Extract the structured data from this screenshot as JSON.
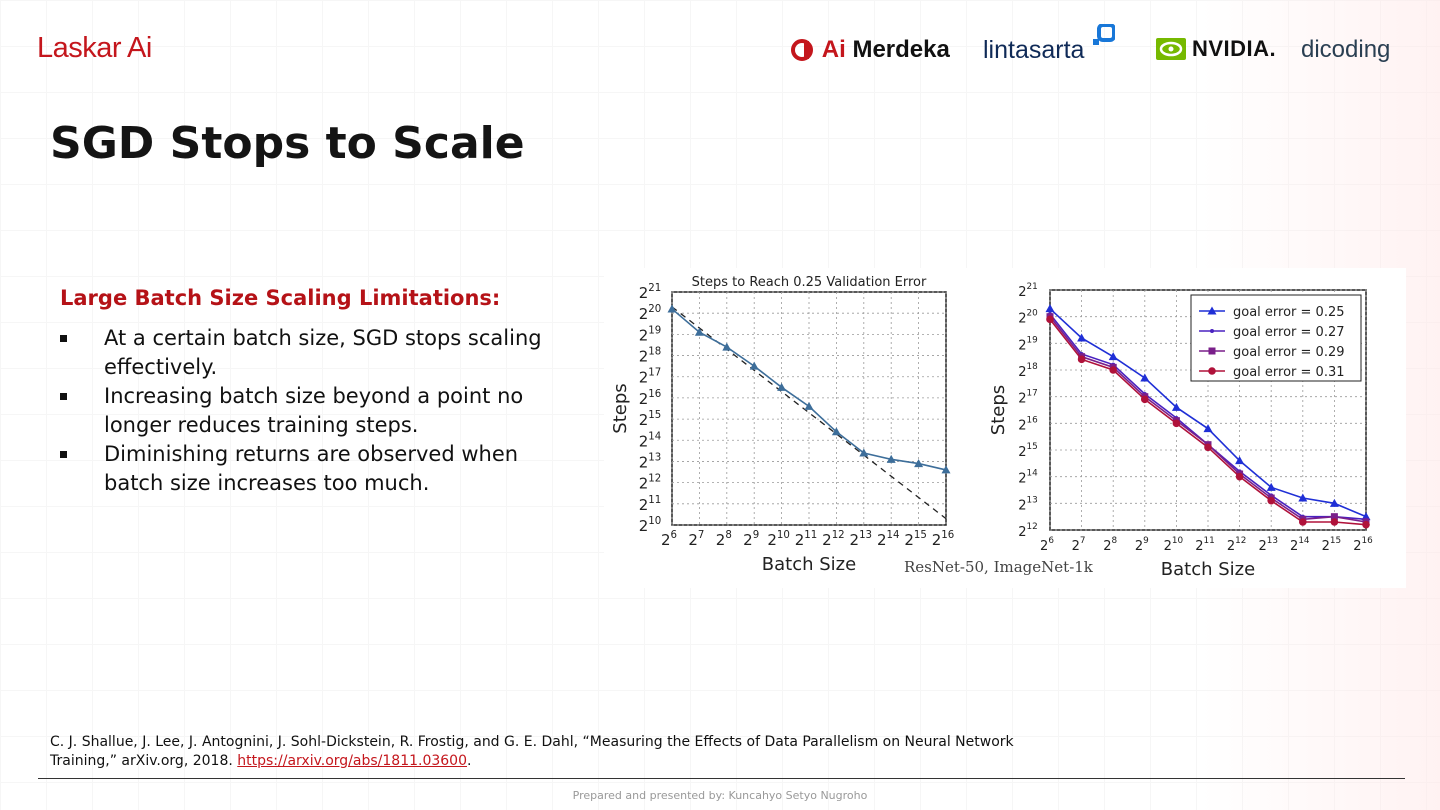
{
  "brand": "Laskar Ai",
  "partner_logos": {
    "merdeka_ai": "Ai",
    "merdeka_word": "Merdeka",
    "lintasarta": "lintasarta",
    "nvidia": "NVIDIA.",
    "dicoding": "dicoding"
  },
  "colors": {
    "accent": "#c4161c",
    "nvidia_green": "#76b900",
    "series_blue": "#1f2fd6",
    "series_purple": "#7a1f8a",
    "series_crimson": "#b0123a"
  },
  "slide": {
    "title": "SGD Stops to Scale",
    "subhead": "Large Batch Size Scaling Limitations:",
    "bullets": [
      "At a certain batch size, SGD stops scaling effectively.",
      "Increasing batch size beyond a point no longer reduces training steps.",
      "Diminishing returns are observed when batch size increases too much."
    ]
  },
  "figure_caption": "ResNet-50, ImageNet-1k",
  "chart_data": [
    {
      "type": "line",
      "title": "Steps to Reach 0.25 Validation Error",
      "xlabel": "Batch Size",
      "ylabel": "Steps",
      "x_scale": "log2",
      "y_scale": "log2",
      "x_ticks": [
        6,
        7,
        8,
        9,
        10,
        11,
        12,
        13,
        14,
        15,
        16
      ],
      "y_ticks": [
        10,
        11,
        12,
        13,
        14,
        15,
        16,
        17,
        18,
        19,
        20,
        21
      ],
      "xlim": [
        6,
        16
      ],
      "ylim": [
        10,
        21
      ],
      "grid": true,
      "x": [
        6,
        7,
        8,
        9,
        10,
        11,
        12,
        13,
        14,
        15,
        16
      ],
      "series": [
        {
          "values": [
            20.2,
            19.1,
            18.4,
            17.5,
            16.5,
            15.6,
            14.4,
            13.4,
            13.1,
            12.9,
            12.6
          ],
          "color": "#3d6e9a"
        }
      ],
      "reference_line": {
        "x": [
          6,
          16
        ],
        "y": [
          20.3,
          10.3
        ],
        "style": "dashed"
      }
    },
    {
      "type": "line",
      "title": "",
      "xlabel": "Batch Size",
      "ylabel": "Steps",
      "x_scale": "log2",
      "y_scale": "log2",
      "x_ticks": [
        6,
        7,
        8,
        9,
        10,
        11,
        12,
        13,
        14,
        15,
        16
      ],
      "y_ticks": [
        12,
        13,
        14,
        15,
        16,
        17,
        18,
        19,
        20,
        21
      ],
      "xlim": [
        6,
        16
      ],
      "ylim": [
        12,
        21
      ],
      "grid": true,
      "legend": "top-right",
      "x": [
        6,
        7,
        8,
        9,
        10,
        11,
        12,
        13,
        14,
        15,
        16
      ],
      "series": [
        {
          "name": "goal error = 0.25",
          "marker": "triangle",
          "color": "#1f2fd6",
          "values": [
            20.3,
            19.2,
            18.5,
            17.7,
            16.6,
            15.8,
            14.6,
            13.6,
            13.2,
            13.0,
            12.5
          ]
        },
        {
          "name": "goal error = 0.27",
          "marker": "dot",
          "color": "#4a22c0",
          "values": [
            20.1,
            18.6,
            18.2,
            17.1,
            16.2,
            15.2,
            14.2,
            13.3,
            12.5,
            12.5,
            12.4
          ]
        },
        {
          "name": "goal error = 0.29",
          "marker": "square",
          "color": "#7a1f8a",
          "values": [
            20.0,
            18.5,
            18.1,
            17.0,
            16.1,
            15.2,
            14.1,
            13.2,
            12.4,
            12.5,
            12.3
          ]
        },
        {
          "name": "goal error = 0.31",
          "marker": "circle",
          "color": "#b0123a",
          "values": [
            19.9,
            18.4,
            18.0,
            16.9,
            16.0,
            15.1,
            14.0,
            13.1,
            12.3,
            12.3,
            12.2
          ]
        }
      ]
    }
  ],
  "citation": {
    "text": "C. J. Shallue, J. Lee, J. Antognini, J. Sohl-Dickstein, R. Frostig, and G. E. Dahl, “Measuring the Effects of Data Parallelism on Neural Network Training,” arXiv.org, 2018.",
    "link": "https://arxiv.org/abs/1811.03600",
    "end": "."
  },
  "footer": "Prepared and presented by: Kuncahyo Setyo Nugroho"
}
